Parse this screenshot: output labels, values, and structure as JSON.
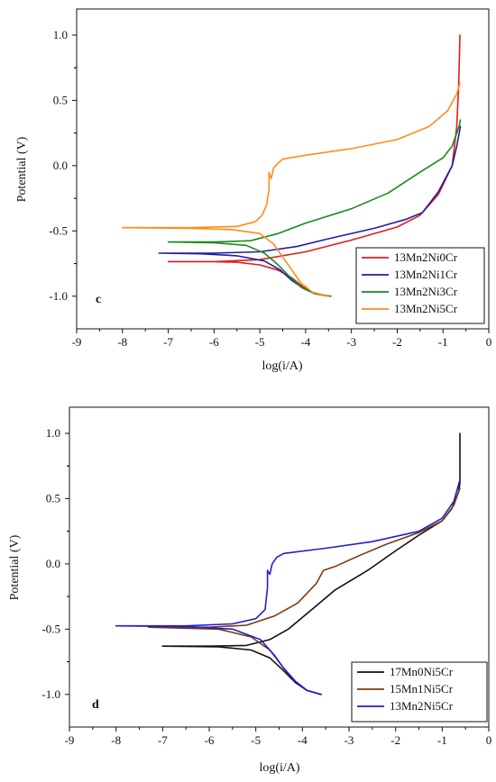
{
  "chart_data": [
    {
      "type": "line",
      "panel_label": "c",
      "xlabel": "log(i/A)",
      "ylabel": "Potential (V)",
      "xlim": [
        -9,
        0
      ],
      "ylim": [
        -1.25,
        1.2
      ],
      "xticks": [
        "-9",
        "-8",
        "-7",
        "-6",
        "-5",
        "-4",
        "-3",
        "-2",
        "-1",
        "0"
      ],
      "yticks": [
        "-1.0",
        "-0.5",
        "0.0",
        "0.5",
        "1.0"
      ],
      "legend_position": "bottom-right",
      "series": [
        {
          "name": "13Mn2Ni0Cr",
          "color": "#e41a1c",
          "points": [
            [
              -3.45,
              -1.0
            ],
            [
              -3.8,
              -0.98
            ],
            [
              -4.05,
              -0.93
            ],
            [
              -4.3,
              -0.86
            ],
            [
              -4.6,
              -0.8
            ],
            [
              -5.0,
              -0.76
            ],
            [
              -5.5,
              -0.74
            ],
            [
              -6.0,
              -0.735
            ],
            [
              -6.5,
              -0.735
            ],
            [
              -7.0,
              -0.735
            ],
            [
              -6.0,
              -0.735
            ],
            [
              -5.0,
              -0.72
            ],
            [
              -4.0,
              -0.66
            ],
            [
              -3.0,
              -0.57
            ],
            [
              -2.0,
              -0.47
            ],
            [
              -1.5,
              -0.38
            ],
            [
              -1.1,
              -0.22
            ],
            [
              -0.8,
              0.0
            ],
            [
              -0.7,
              0.3
            ],
            [
              -0.66,
              0.6
            ],
            [
              -0.64,
              0.85
            ],
            [
              -0.63,
              1.0
            ]
          ]
        },
        {
          "name": "13Mn2Ni1Cr",
          "color": "#1f1fa0",
          "points": [
            [
              -3.5,
              -1.0
            ],
            [
              -3.8,
              -0.98
            ],
            [
              -4.05,
              -0.94
            ],
            [
              -4.3,
              -0.88
            ],
            [
              -4.55,
              -0.8
            ],
            [
              -4.9,
              -0.73
            ],
            [
              -5.5,
              -0.69
            ],
            [
              -6.3,
              -0.675
            ],
            [
              -7.2,
              -0.67
            ],
            [
              -6.0,
              -0.67
            ],
            [
              -5.0,
              -0.66
            ],
            [
              -4.2,
              -0.62
            ],
            [
              -3.5,
              -0.56
            ],
            [
              -2.5,
              -0.48
            ],
            [
              -1.8,
              -0.41
            ],
            [
              -1.45,
              -0.36
            ],
            [
              -1.1,
              -0.2
            ],
            [
              -0.8,
              0.0
            ],
            [
              -0.7,
              0.15
            ],
            [
              -0.62,
              0.3
            ]
          ]
        },
        {
          "name": "13Mn2Ni3Cr",
          "color": "#1a8a1a",
          "points": [
            [
              -3.45,
              -1.0
            ],
            [
              -3.8,
              -0.98
            ],
            [
              -4.1,
              -0.93
            ],
            [
              -4.35,
              -0.85
            ],
            [
              -4.6,
              -0.76
            ],
            [
              -4.9,
              -0.67
            ],
            [
              -5.3,
              -0.61
            ],
            [
              -6.0,
              -0.59
            ],
            [
              -7.0,
              -0.585
            ],
            [
              -6.0,
              -0.585
            ],
            [
              -5.2,
              -0.575
            ],
            [
              -4.6,
              -0.52
            ],
            [
              -4.0,
              -0.44
            ],
            [
              -3.0,
              -0.33
            ],
            [
              -2.2,
              -0.21
            ],
            [
              -1.5,
              -0.05
            ],
            [
              -1.0,
              0.06
            ],
            [
              -0.8,
              0.15
            ],
            [
              -0.65,
              0.3
            ],
            [
              -0.62,
              0.35
            ]
          ]
        },
        {
          "name": "13Mn2Ni5Cr",
          "color": "#ff8c1a",
          "points": [
            [
              -3.5,
              -1.0
            ],
            [
              -3.85,
              -0.97
            ],
            [
              -4.1,
              -0.9
            ],
            [
              -4.3,
              -0.8
            ],
            [
              -4.5,
              -0.7
            ],
            [
              -4.7,
              -0.6
            ],
            [
              -5.0,
              -0.52
            ],
            [
              -5.6,
              -0.49
            ],
            [
              -6.5,
              -0.48
            ],
            [
              -8.0,
              -0.475
            ],
            [
              -6.5,
              -0.475
            ],
            [
              -5.5,
              -0.465
            ],
            [
              -5.1,
              -0.43
            ],
            [
              -4.95,
              -0.38
            ],
            [
              -4.85,
              -0.3
            ],
            [
              -4.8,
              -0.18
            ],
            [
              -4.8,
              -0.05
            ],
            [
              -4.75,
              -0.1
            ],
            [
              -4.7,
              -0.02
            ],
            [
              -4.6,
              0.02
            ],
            [
              -4.5,
              0.05
            ],
            [
              -4.0,
              0.08
            ],
            [
              -3.0,
              0.13
            ],
            [
              -2.0,
              0.2
            ],
            [
              -1.3,
              0.3
            ],
            [
              -0.9,
              0.42
            ],
            [
              -0.7,
              0.55
            ],
            [
              -0.63,
              0.63
            ]
          ]
        }
      ]
    },
    {
      "type": "line",
      "panel_label": "d",
      "xlabel": "log(i/A)",
      "ylabel": "Potential (V)",
      "xlim": [
        -9,
        0
      ],
      "ylim": [
        -1.25,
        1.2
      ],
      "xticks": [
        "-9",
        "-8",
        "-7",
        "-6",
        "-5",
        "-4",
        "-3",
        "-2",
        "-1",
        "0"
      ],
      "yticks": [
        "-1.0",
        "-0.5",
        "0.0",
        "0.5",
        "1.0"
      ],
      "legend_position": "bottom-right",
      "series": [
        {
          "name": "17Mn0Ni5Cr",
          "color": "#111111",
          "points": [
            [
              -3.6,
              -1.0
            ],
            [
              -3.9,
              -0.97
            ],
            [
              -4.15,
              -0.91
            ],
            [
              -4.4,
              -0.82
            ],
            [
              -4.7,
              -0.72
            ],
            [
              -5.1,
              -0.66
            ],
            [
              -5.8,
              -0.635
            ],
            [
              -7.0,
              -0.63
            ],
            [
              -6.0,
              -0.63
            ],
            [
              -5.2,
              -0.625
            ],
            [
              -4.7,
              -0.58
            ],
            [
              -4.3,
              -0.5
            ],
            [
              -3.8,
              -0.35
            ],
            [
              -3.3,
              -0.2
            ],
            [
              -2.6,
              -0.05
            ],
            [
              -2.0,
              0.1
            ],
            [
              -1.5,
              0.22
            ],
            [
              -1.0,
              0.33
            ],
            [
              -0.8,
              0.42
            ],
            [
              -0.65,
              0.55
            ],
            [
              -0.62,
              0.62
            ],
            [
              -0.62,
              1.0
            ]
          ]
        },
        {
          "name": "15Mn1Ni5Cr",
          "color": "#7a3b10",
          "points": [
            [
              -3.6,
              -1.0
            ],
            [
              -3.9,
              -0.97
            ],
            [
              -4.15,
              -0.9
            ],
            [
              -4.4,
              -0.8
            ],
            [
              -4.7,
              -0.66
            ],
            [
              -5.1,
              -0.56
            ],
            [
              -5.8,
              -0.5
            ],
            [
              -7.3,
              -0.485
            ],
            [
              -6.0,
              -0.485
            ],
            [
              -5.2,
              -0.47
            ],
            [
              -4.6,
              -0.4
            ],
            [
              -4.1,
              -0.3
            ],
            [
              -3.7,
              -0.15
            ],
            [
              -3.55,
              -0.05
            ],
            [
              -3.3,
              -0.02
            ],
            [
              -2.8,
              0.06
            ],
            [
              -2.2,
              0.15
            ],
            [
              -1.5,
              0.24
            ],
            [
              -1.0,
              0.33
            ],
            [
              -0.75,
              0.45
            ],
            [
              -0.62,
              0.58
            ]
          ]
        },
        {
          "name": "13Mn2Ni5Cr",
          "color": "#2020d0",
          "points": [
            [
              -3.6,
              -1.0
            ],
            [
              -3.9,
              -0.97
            ],
            [
              -4.15,
              -0.9
            ],
            [
              -4.4,
              -0.8
            ],
            [
              -4.6,
              -0.7
            ],
            [
              -4.9,
              -0.58
            ],
            [
              -5.5,
              -0.5
            ],
            [
              -6.5,
              -0.48
            ],
            [
              -8.0,
              -0.475
            ],
            [
              -6.5,
              -0.475
            ],
            [
              -5.5,
              -0.46
            ],
            [
              -5.0,
              -0.42
            ],
            [
              -4.8,
              -0.35
            ],
            [
              -4.75,
              -0.18
            ],
            [
              -4.75,
              -0.05
            ],
            [
              -4.7,
              -0.08
            ],
            [
              -4.65,
              0.0
            ],
            [
              -4.55,
              0.05
            ],
            [
              -4.4,
              0.08
            ],
            [
              -3.5,
              0.12
            ],
            [
              -2.5,
              0.17
            ],
            [
              -1.5,
              0.25
            ],
            [
              -1.0,
              0.35
            ],
            [
              -0.75,
              0.48
            ],
            [
              -0.63,
              0.63
            ]
          ]
        }
      ]
    }
  ]
}
